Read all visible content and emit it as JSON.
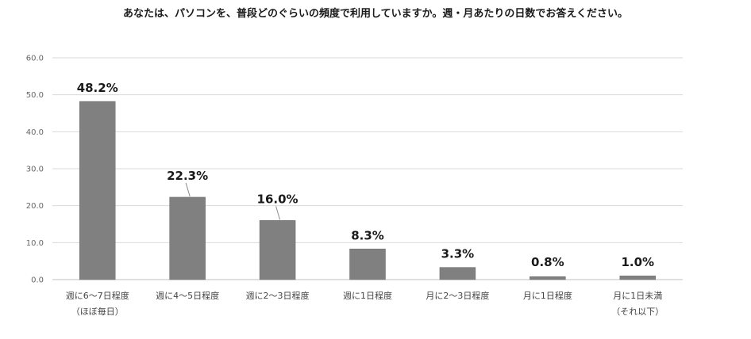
{
  "chart_data": {
    "type": "bar",
    "title": "あなたは、パソコンを、普段どのぐらいの頻度で利用していますか。週・月あたりの日数でお答えください。",
    "xlabel": "",
    "ylabel": "",
    "ylim": [
      0,
      60
    ],
    "yticks": [
      "0.0",
      "10.0",
      "20.0",
      "30.0",
      "40.0",
      "50.0",
      "60.0"
    ],
    "grid": true,
    "legend": "none",
    "bar_color": "#808080",
    "categories": [
      [
        "週に6～7日程度",
        "（ほぼ毎日）"
      ],
      [
        "週に4～5日程度"
      ],
      [
        "週に2～3日程度"
      ],
      [
        "週に1日程度"
      ],
      [
        "月に2～3日程度"
      ],
      [
        "月に1日程度"
      ],
      [
        "月に1日未満",
        "（それ以下）"
      ]
    ],
    "values": [
      48.2,
      22.3,
      16.0,
      8.3,
      3.3,
      0.8,
      1.0
    ],
    "data_labels": [
      "48.2%",
      "22.3%",
      "16.0%",
      "8.3%",
      "3.3%",
      "0.8%",
      "1.0%"
    ]
  }
}
